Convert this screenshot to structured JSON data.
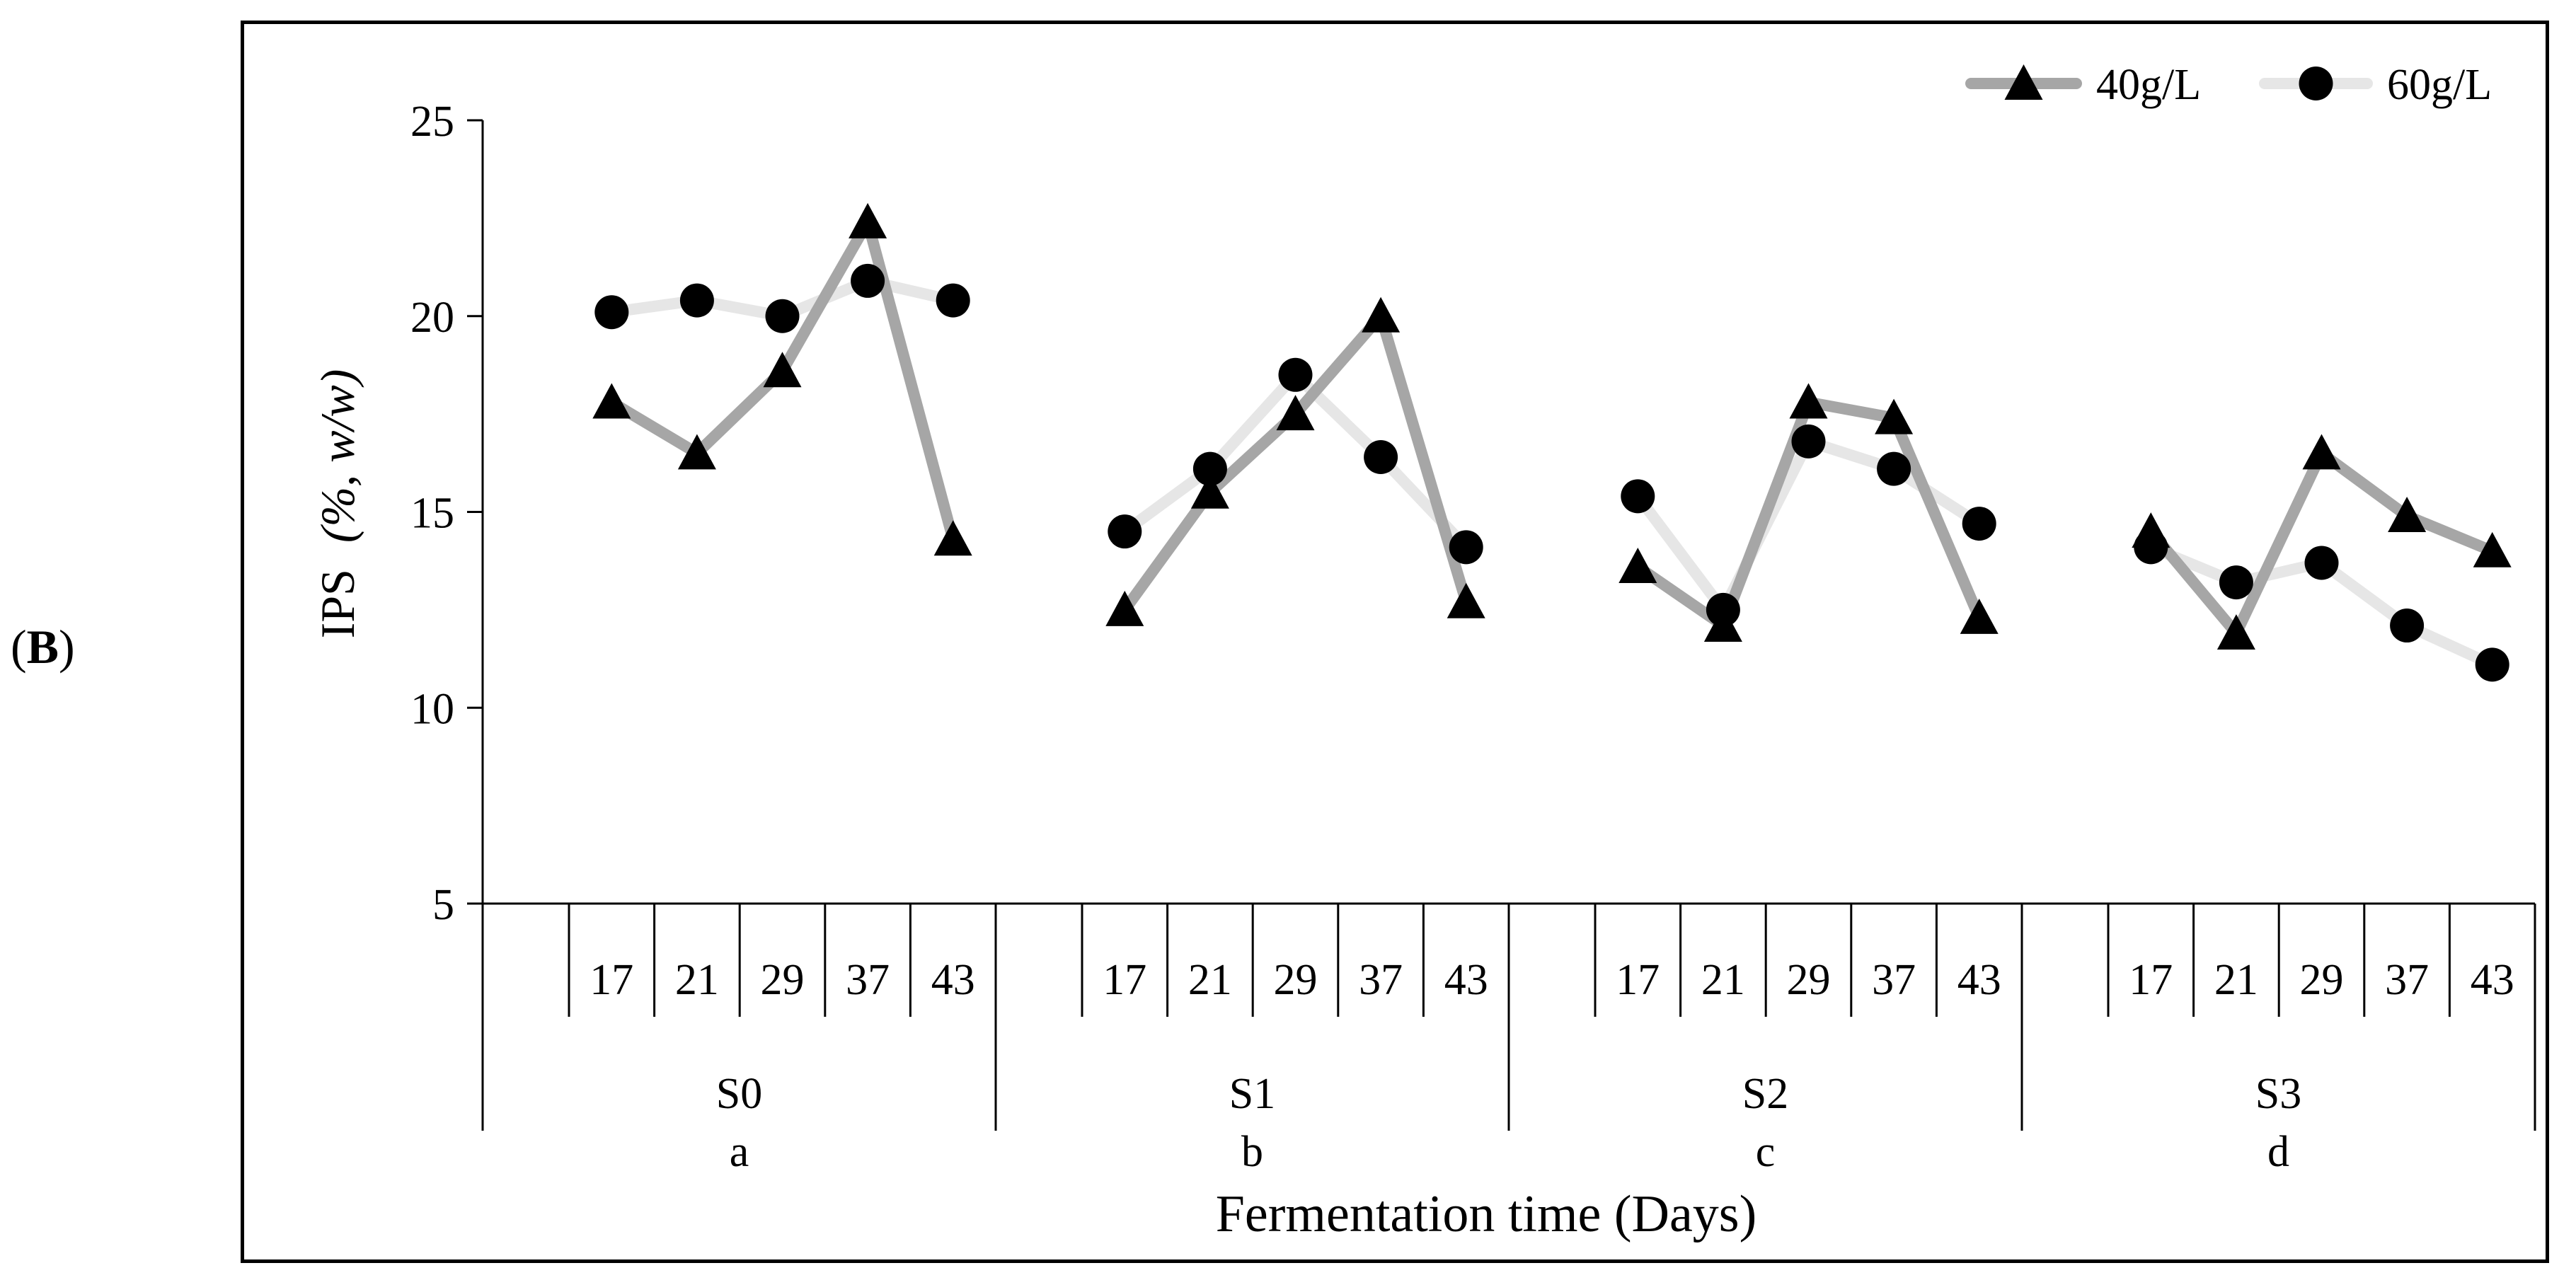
{
  "panel_label": "B",
  "chart_data": {
    "type": "line",
    "title": "",
    "xlabel": "Fermentation time (Days)",
    "ylabel_main": "IPS",
    "ylabel_units": "(%, w/w)",
    "ylim": [
      5,
      25
    ],
    "yticks": [
      5,
      10,
      15,
      20,
      25
    ],
    "groups": [
      {
        "name": "S0",
        "letter": "a",
        "days": [
          "17",
          "21",
          "29",
          "37",
          "43"
        ]
      },
      {
        "name": "S1",
        "letter": "b",
        "days": [
          "17",
          "21",
          "29",
          "37",
          "43"
        ]
      },
      {
        "name": "S2",
        "letter": "c",
        "days": [
          "17",
          "21",
          "29",
          "37",
          "43"
        ]
      },
      {
        "name": "S3",
        "letter": "d",
        "days": [
          "17",
          "21",
          "29",
          "37",
          "43"
        ]
      }
    ],
    "series": [
      {
        "name": "40g/L",
        "marker": "triangle",
        "color": "#a6a6a6",
        "segments": [
          [
            17.8,
            16.5,
            18.6,
            22.4,
            14.3
          ],
          [
            12.5,
            15.5,
            17.5,
            20.0,
            12.7
          ],
          [
            13.6,
            12.1,
            17.8,
            17.4,
            12.3
          ],
          [
            14.5,
            11.9,
            16.5,
            14.9,
            14.0
          ]
        ]
      },
      {
        "name": "60g/L",
        "marker": "circle",
        "color": "#e6e6e6",
        "segments": [
          [
            20.1,
            20.4,
            20.0,
            20.9,
            20.4
          ],
          [
            14.5,
            16.1,
            18.5,
            16.4,
            14.1
          ],
          [
            15.4,
            12.5,
            16.8,
            16.1,
            14.7
          ],
          [
            14.1,
            13.2,
            13.7,
            12.1,
            11.1
          ]
        ]
      }
    ],
    "legend_position": "top-right"
  }
}
